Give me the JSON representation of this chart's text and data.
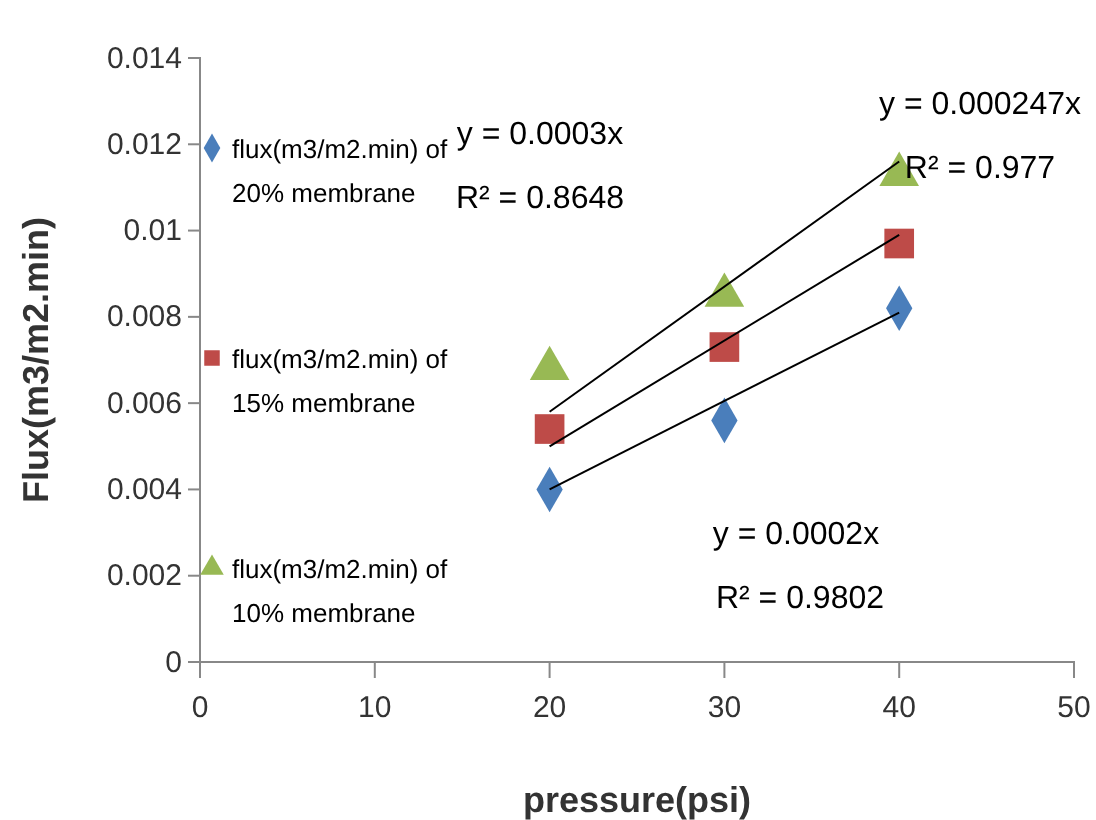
{
  "chart_data": {
    "type": "scatter",
    "xlabel": "pressure(psi)",
    "ylabel": "Flux(m3/m2.min)",
    "xlim": [
      0,
      50
    ],
    "xticks": [
      0,
      10,
      20,
      30,
      40,
      50
    ],
    "ylim": [
      0,
      0.014
    ],
    "yticks": [
      0,
      0.002,
      0.004,
      0.006,
      0.008,
      0.01,
      0.012,
      0.014
    ],
    "grid": false,
    "legend": "left",
    "series": [
      {
        "name": "flux(m3/m2.min) of 20% membrane",
        "color": "#4a7ebb",
        "marker": "diamond",
        "x": [
          20,
          30,
          40
        ],
        "values": [
          0.004,
          0.0056,
          0.0082
        ]
      },
      {
        "name": "flux(m3/m2.min) of 15% membrane",
        "color": "#be4b48",
        "marker": "square",
        "x": [
          20,
          30,
          40
        ],
        "values": [
          0.0054,
          0.0073,
          0.0097
        ]
      },
      {
        "name": "flux(m3/m2.min) of 10% membrane",
        "color": "#98b954",
        "marker": "triangle",
        "x": [
          20,
          30,
          40
        ],
        "values": [
          0.0068,
          0.0085,
          0.0113
        ]
      },
      {
        "type": "line",
        "color": "#000000",
        "marker": "none",
        "x": [
          20,
          40
        ],
        "values": [
          0.004,
          0.0081
        ]
      },
      {
        "type": "line",
        "color": "#000000",
        "marker": "none",
        "x": [
          20,
          40
        ],
        "values": [
          0.005,
          0.0099
        ]
      },
      {
        "type": "line",
        "color": "#000000",
        "marker": "none",
        "x": [
          20,
          40
        ],
        "values": [
          0.0058,
          0.0116
        ]
      }
    ],
    "annotations": [
      "y = 0.0003x",
      "R² = 0.8648",
      "y = 0.000247x",
      "R² = 0.977",
      "y = 0.0002x",
      "R² = 0.9802"
    ]
  }
}
